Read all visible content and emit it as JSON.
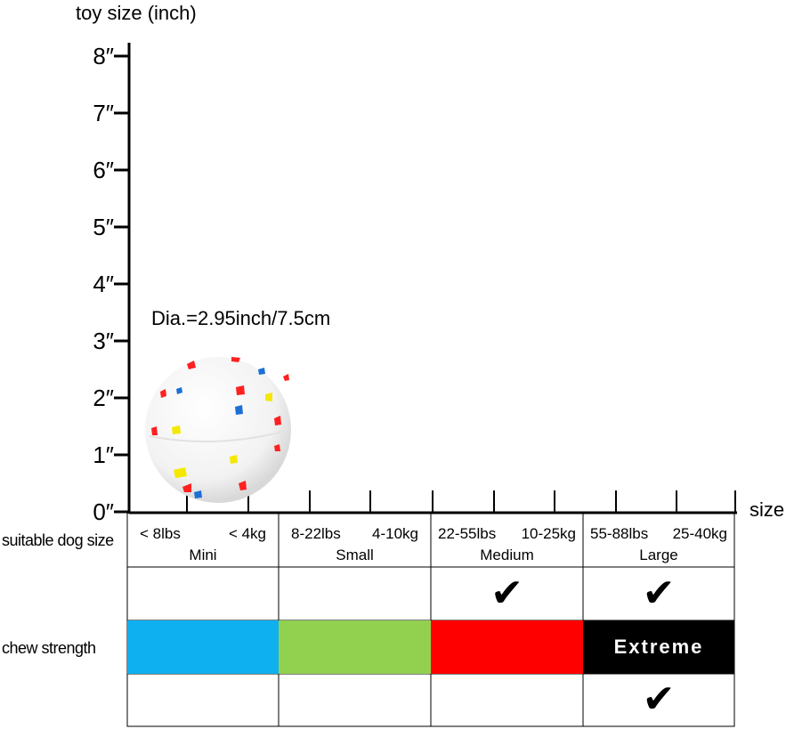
{
  "y_axis": {
    "title": "toy size (inch)",
    "ticks": [
      "0″",
      "1″",
      "2″",
      "3″",
      "4″",
      "5″",
      "6″",
      "7″",
      "8″"
    ]
  },
  "x_axis": {
    "title": "size"
  },
  "product": {
    "diameter_label": "Dia.=2.95inch/7.5cm",
    "image_icon": "ball-image"
  },
  "rows": {
    "dog_size_label": "suitable dog size",
    "chew_label": "chew strength"
  },
  "sizes": [
    {
      "lbs": "< 8lbs",
      "kg": "< 4kg",
      "name": "Mini"
    },
    {
      "lbs": "8-22lbs",
      "kg": "4-10kg",
      "name": "Small"
    },
    {
      "lbs": "22-55lbs",
      "kg": "10-25kg",
      "name": "Medium"
    },
    {
      "lbs": "55-88lbs",
      "kg": "25-40kg",
      "name": "Large"
    }
  ],
  "size_checks": [
    false,
    false,
    true,
    true
  ],
  "chew": [
    {
      "color": "#0fb0ef",
      "label": ""
    },
    {
      "color": "#92d050",
      "label": ""
    },
    {
      "color": "#ff0000",
      "label": ""
    },
    {
      "color": "#000000",
      "label": "Extreme"
    }
  ],
  "chew_checks": [
    false,
    false,
    false,
    true
  ],
  "check_glyph": "✔"
}
